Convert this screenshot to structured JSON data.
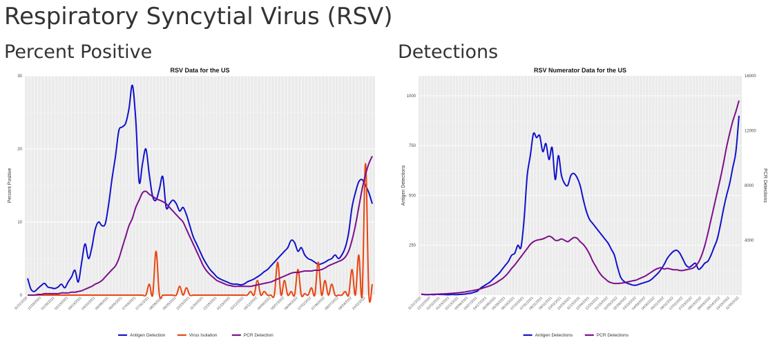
{
  "page": {
    "title": "Respiratory Syncytial Virus (RSV)",
    "left_heading": "Percent Positive",
    "right_heading": "Detections"
  },
  "chart_data": [
    {
      "type": "line",
      "title": "RSV Data for the US",
      "xlabel": "",
      "ylabel": "Percent Positive",
      "ylim": [
        0,
        30
      ],
      "yticks": [
        0,
        10,
        20,
        30
      ],
      "grid": true,
      "legend_position": "bottom",
      "x": [
        "11/21/2020",
        "11/28/2020",
        "12/05/2020",
        "12/12/2020",
        "12/19/2020",
        "12/26/2020",
        "01/02/2021",
        "01/09/2021",
        "01/16/2021",
        "01/23/2021",
        "01/30/2021",
        "02/06/2021",
        "02/13/2021",
        "02/20/2021",
        "02/27/2021",
        "03/06/2021",
        "03/13/2021",
        "03/20/2021",
        "03/27/2021",
        "04/03/2021",
        "04/10/2021",
        "04/17/2021",
        "04/24/2021",
        "05/01/2021",
        "05/08/2021",
        "05/15/2021",
        "05/22/2021",
        "05/29/2021",
        "06/05/2021",
        "06/12/2021",
        "06/19/2021",
        "06/26/2021",
        "07/03/2021",
        "07/10/2021",
        "07/17/2021",
        "07/24/2021",
        "07/31/2021",
        "08/07/2021",
        "08/14/2021",
        "08/21/2021",
        "08/28/2021",
        "09/04/2021",
        "09/11/2021",
        "09/18/2021",
        "09/25/2021",
        "10/02/2021",
        "10/09/2021",
        "10/16/2021",
        "10/23/2021",
        "10/30/2021",
        "11/06/2021",
        "11/13/2021",
        "11/20/2021",
        "11/27/2021",
        "12/04/2021",
        "12/11/2021",
        "12/18/2021",
        "12/25/2021",
        "01/01/2022",
        "01/08/2022",
        "01/15/2022",
        "01/22/2022",
        "01/29/2022",
        "02/05/2022",
        "02/12/2022",
        "02/19/2022",
        "02/26/2022",
        "03/05/2022",
        "03/12/2022",
        "03/19/2022",
        "03/26/2022",
        "04/02/2022",
        "04/09/2022",
        "04/16/2022",
        "04/23/2022",
        "04/30/2022",
        "05/07/2022",
        "05/14/2022",
        "05/21/2022",
        "05/28/2022",
        "06/04/2022",
        "06/11/2022",
        "06/18/2022",
        "06/25/2022",
        "07/02/2022",
        "07/09/2022",
        "07/16/2022",
        "07/23/2022",
        "07/30/2022",
        "08/06/2022",
        "08/13/2022",
        "08/20/2022",
        "08/27/2022",
        "09/03/2022",
        "09/10/2022",
        "09/17/2022",
        "09/24/2022",
        "10/01/2022",
        "10/08/2022",
        "10/15/2022",
        "10/22/2022",
        "10/29/2022",
        "11/05/2022"
      ],
      "series": [
        {
          "name": "Antigen Detection",
          "color": "#1010cc",
          "values": [
            2.3,
            0.8,
            0.5,
            0.9,
            1.3,
            1.6,
            1.1,
            1.0,
            0.9,
            1.1,
            1.5,
            1.0,
            1.8,
            2.5,
            3.4,
            1.8,
            4.5,
            7.0,
            5.0,
            6.5,
            9.0,
            10.0,
            9.5,
            9.8,
            12.5,
            16.0,
            19.0,
            22.5,
            23.0,
            23.5,
            25.5,
            28.7,
            24.0,
            15.5,
            18.0,
            20.0,
            16.5,
            13.5,
            13.0,
            14.5,
            16.2,
            12.0,
            12.5,
            13.0,
            12.5,
            11.5,
            12.0,
            11.0,
            9.5,
            8.0,
            7.0,
            6.0,
            5.0,
            4.2,
            3.5,
            3.0,
            2.5,
            2.2,
            2.0,
            1.8,
            1.6,
            1.5,
            1.5,
            1.4,
            1.5,
            1.8,
            2.0,
            2.2,
            2.5,
            2.8,
            3.2,
            3.5,
            4.0,
            4.5,
            5.0,
            5.5,
            6.0,
            6.5,
            7.5,
            7.2,
            6.0,
            6.5,
            5.5,
            5.0,
            4.8,
            4.5,
            4.2,
            4.3,
            4.5,
            4.8,
            5.0,
            5.5,
            5.0,
            5.5,
            6.5,
            8.5,
            12.0,
            14.0,
            15.5,
            15.8,
            15.0,
            14.0,
            12.5
          ]
        },
        {
          "name": "Virus Isolation",
          "color": "#e8440f",
          "values": [
            0,
            0,
            0,
            0,
            0,
            0,
            0,
            0,
            0,
            0,
            0,
            0,
            0,
            0,
            0,
            0,
            0,
            0,
            0,
            0,
            0,
            0,
            0,
            0,
            0,
            0,
            0,
            0,
            0,
            0,
            0,
            0,
            0,
            0,
            0,
            0,
            1.5,
            0,
            6.0,
            0,
            0,
            0,
            0,
            0,
            0,
            1.2,
            0,
            1.0,
            0,
            0,
            0,
            0,
            0,
            0,
            0,
            0,
            0,
            0,
            0,
            0,
            0,
            0,
            0,
            0,
            0,
            0,
            0.5,
            0,
            2.0,
            0,
            0.5,
            0,
            0,
            0,
            4.5,
            0,
            2.0,
            0,
            0.5,
            0,
            3.5,
            0,
            0.2,
            0,
            1.0,
            0,
            4.5,
            0,
            2.0,
            0,
            1.5,
            0,
            0,
            0,
            0.5,
            0,
            3.5,
            0,
            5.5,
            0,
            18.0,
            0,
            1.5
          ]
        },
        {
          "name": "PCR Detection",
          "color": "#7b0e8a",
          "values": [
            0,
            0,
            0,
            0.1,
            0.1,
            0.2,
            0.2,
            0.2,
            0.2,
            0.2,
            0.3,
            0.3,
            0.3,
            0.4,
            0.4,
            0.5,
            0.6,
            0.8,
            1.0,
            1.2,
            1.5,
            1.7,
            2.0,
            2.5,
            3.0,
            3.5,
            4.0,
            5.0,
            6.5,
            8.0,
            9.5,
            10.5,
            12.0,
            13.0,
            14.0,
            14.2,
            13.8,
            13.5,
            13.2,
            13.0,
            12.8,
            12.5,
            12.0,
            11.5,
            11.0,
            10.5,
            10.0,
            9.0,
            8.0,
            7.0,
            6.0,
            5.0,
            4.0,
            3.3,
            2.8,
            2.4,
            2.0,
            1.8,
            1.6,
            1.4,
            1.3,
            1.2,
            1.2,
            1.2,
            1.2,
            1.2,
            1.2,
            1.3,
            1.4,
            1.5,
            1.6,
            1.7,
            1.8,
            2.0,
            2.2,
            2.4,
            2.6,
            2.8,
            3.0,
            3.1,
            3.1,
            3.2,
            3.3,
            3.3,
            3.3,
            3.4,
            3.4,
            3.5,
            3.7,
            4.0,
            4.2,
            4.4,
            4.6,
            4.8,
            5.2,
            6.0,
            7.5,
            9.5,
            12.0,
            14.5,
            16.5,
            18.0,
            19.0
          ]
        }
      ]
    },
    {
      "type": "line",
      "title": "RSV Numerator Data for the US",
      "xlabel": "",
      "ylabel": "Antigen Detections",
      "y2label": "PCR Detections",
      "ylim": [
        0,
        1100
      ],
      "yticks": [
        250,
        500,
        750,
        1000
      ],
      "y2lim": [
        0,
        16000
      ],
      "y2ticks": [
        4000,
        8000,
        12000,
        16000
      ],
      "grid": true,
      "legend_position": "bottom",
      "x": [
        "11/21/2020",
        "11/28/2020",
        "12/05/2020",
        "12/12/2020",
        "12/19/2020",
        "12/26/2020",
        "01/02/2021",
        "01/09/2021",
        "01/16/2021",
        "01/23/2021",
        "01/30/2021",
        "02/06/2021",
        "02/13/2021",
        "02/20/2021",
        "02/27/2021",
        "03/06/2021",
        "03/13/2021",
        "03/20/2021",
        "03/27/2021",
        "04/03/2021",
        "04/10/2021",
        "04/17/2021",
        "04/24/2021",
        "05/01/2021",
        "05/08/2021",
        "05/15/2021",
        "05/22/2021",
        "05/29/2021",
        "06/05/2021",
        "06/12/2021",
        "06/19/2021",
        "06/26/2021",
        "07/03/2021",
        "07/10/2021",
        "07/17/2021",
        "07/24/2021",
        "07/31/2021",
        "08/07/2021",
        "08/14/2021",
        "08/21/2021",
        "08/28/2021",
        "09/04/2021",
        "09/11/2021",
        "09/18/2021",
        "09/25/2021",
        "10/02/2021",
        "10/09/2021",
        "10/16/2021",
        "10/23/2021",
        "10/30/2021",
        "11/06/2021",
        "11/13/2021",
        "11/20/2021",
        "11/27/2021",
        "12/04/2021",
        "12/11/2021",
        "12/18/2021",
        "12/25/2021",
        "01/01/2022",
        "01/08/2022",
        "01/15/2022",
        "01/22/2022",
        "01/29/2022",
        "02/05/2022",
        "02/12/2022",
        "02/19/2022",
        "02/26/2022",
        "03/05/2022",
        "03/12/2022",
        "03/19/2022",
        "03/26/2022",
        "04/02/2022",
        "04/09/2022",
        "04/16/2022",
        "04/23/2022",
        "04/30/2022",
        "05/07/2022",
        "05/14/2022",
        "05/21/2022",
        "05/28/2022",
        "06/04/2022",
        "06/11/2022",
        "06/18/2022",
        "06/25/2022",
        "07/02/2022",
        "07/09/2022",
        "07/16/2022",
        "07/23/2022",
        "07/30/2022",
        "08/06/2022",
        "08/13/2022",
        "08/20/2022",
        "08/27/2022",
        "09/03/2022",
        "09/10/2022",
        "09/17/2022",
        "09/24/2022",
        "10/01/2022",
        "10/08/2022",
        "10/15/2022",
        "10/22/2022",
        "10/29/2022",
        "11/05/2022"
      ],
      "series": [
        {
          "name": "Antigen Detections",
          "color": "#1010cc",
          "axis": "left",
          "values": [
            5,
            3,
            2,
            3,
            2,
            4,
            3,
            3,
            2,
            2,
            3,
            2,
            3,
            4,
            5,
            8,
            10,
            15,
            20,
            35,
            45,
            55,
            65,
            80,
            95,
            110,
            130,
            150,
            170,
            200,
            210,
            250,
            240,
            380,
            600,
            700,
            810,
            790,
            800,
            720,
            760,
            680,
            740,
            580,
            700,
            600,
            560,
            550,
            600,
            610,
            590,
            550,
            480,
            420,
            380,
            360,
            340,
            320,
            300,
            280,
            260,
            230,
            200,
            140,
            90,
            70,
            60,
            55,
            50,
            50,
            55,
            60,
            65,
            70,
            80,
            95,
            110,
            130,
            155,
            185,
            205,
            220,
            225,
            210,
            180,
            150,
            140,
            150,
            160,
            130,
            140,
            160,
            170,
            200,
            240,
            280,
            350,
            430,
            500,
            560,
            640,
            720,
            900
          ]
        },
        {
          "name": "PCR Detections",
          "color": "#7b0e8a",
          "axis": "right",
          "values": [
            50,
            40,
            40,
            50,
            60,
            70,
            80,
            90,
            100,
            120,
            130,
            150,
            170,
            200,
            230,
            270,
            310,
            350,
            400,
            460,
            530,
            600,
            680,
            780,
            900,
            1050,
            1200,
            1400,
            1650,
            1950,
            2200,
            2500,
            2800,
            3100,
            3400,
            3700,
            3900,
            4000,
            4050,
            4100,
            4200,
            4300,
            4200,
            4000,
            4000,
            4100,
            4000,
            3900,
            4050,
            4200,
            4150,
            3900,
            3700,
            3400,
            3000,
            2500,
            2100,
            1700,
            1400,
            1200,
            1000,
            900,
            850,
            850,
            870,
            900,
            950,
            1000,
            1050,
            1100,
            1200,
            1300,
            1400,
            1550,
            1700,
            1850,
            1950,
            2000,
            1900,
            1950,
            1900,
            1850,
            1850,
            1800,
            1800,
            1850,
            1900,
            1950,
            2100,
            2400,
            2900,
            3600,
            4500,
            5500,
            6500,
            7500,
            8500,
            9600,
            10800,
            11800,
            12700,
            13400,
            14200
          ]
        }
      ]
    }
  ]
}
